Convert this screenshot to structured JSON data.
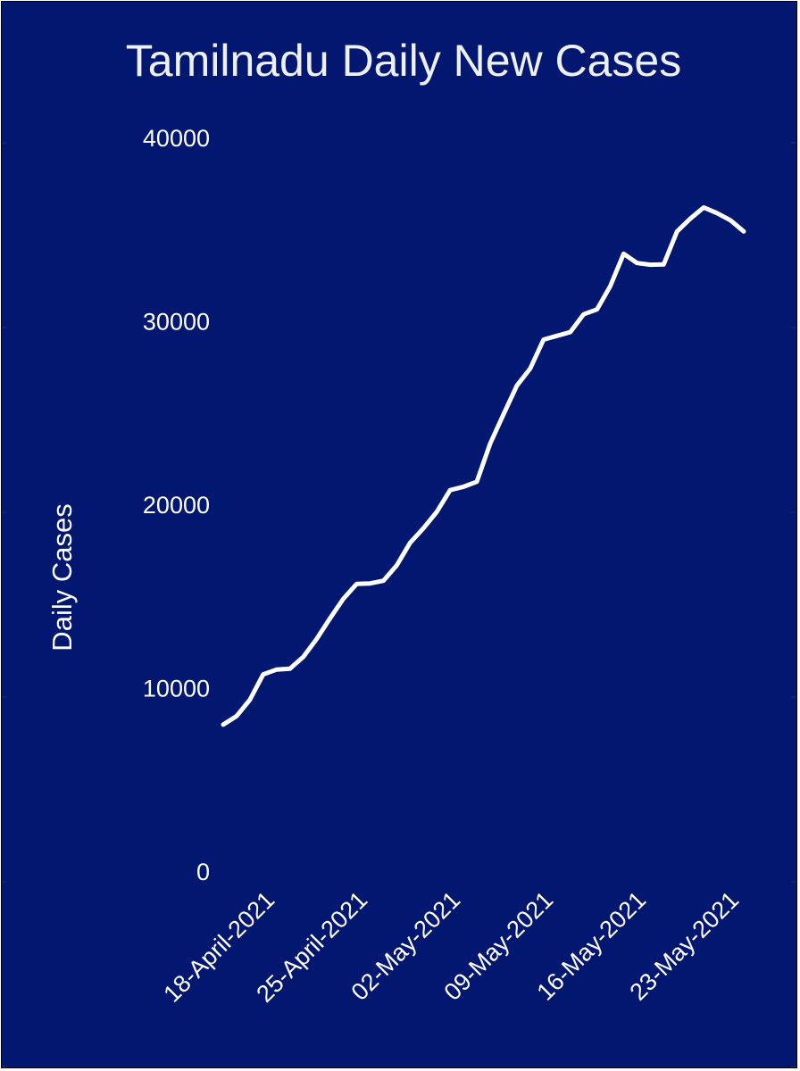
{
  "colors": {
    "background": "#02176f",
    "line": "#ffffff",
    "text": "#ffffff"
  },
  "chart_data": {
    "type": "line",
    "title": "Tamilnadu Daily New Cases",
    "xlabel": "",
    "ylabel": "Daily Cases",
    "ylim": [
      0,
      40000
    ],
    "yticks": [
      0,
      10000,
      20000,
      30000,
      40000
    ],
    "xtick_labels": [
      "18-April-2021",
      "25-April-2021",
      "02-May-2021",
      "09-May-2021",
      "16-May-2021",
      "23-May-2021"
    ],
    "x_start": "2021-04-17",
    "x_end": "2021-05-26",
    "grid": false,
    "legend": "none",
    "series": [
      {
        "x": [
          "2021-04-17",
          "2021-04-18",
          "2021-04-19",
          "2021-04-20",
          "2021-04-21",
          "2021-04-22",
          "2021-04-23",
          "2021-04-24",
          "2021-04-25",
          "2021-04-26",
          "2021-04-27",
          "2021-04-28",
          "2021-04-29",
          "2021-04-30",
          "2021-05-01",
          "2021-05-02",
          "2021-05-03",
          "2021-05-04",
          "2021-05-05",
          "2021-05-06",
          "2021-05-07",
          "2021-05-08",
          "2021-05-09",
          "2021-05-10",
          "2021-05-11",
          "2021-05-12",
          "2021-05-13",
          "2021-05-14",
          "2021-05-15",
          "2021-05-16",
          "2021-05-17",
          "2021-05-18",
          "2021-05-19",
          "2021-05-20",
          "2021-05-21",
          "2021-05-22",
          "2021-05-23",
          "2021-05-24",
          "2021-05-25",
          "2021-05-26"
        ],
        "values": [
          7987,
          8449,
          9344,
          10723,
          10986,
          11030,
          11681,
          12652,
          13776,
          14842,
          15659,
          15684,
          15830,
          16665,
          17897,
          18692,
          19588,
          20768,
          20952,
          21228,
          23310,
          24898,
          26465,
          27397,
          28978,
          29182,
          29386,
          30355,
          30621,
          31892,
          33658,
          33152,
          33059,
          33075,
          34875,
          35579,
          36184,
          35873,
          35483,
          34875
        ]
      }
    ]
  }
}
